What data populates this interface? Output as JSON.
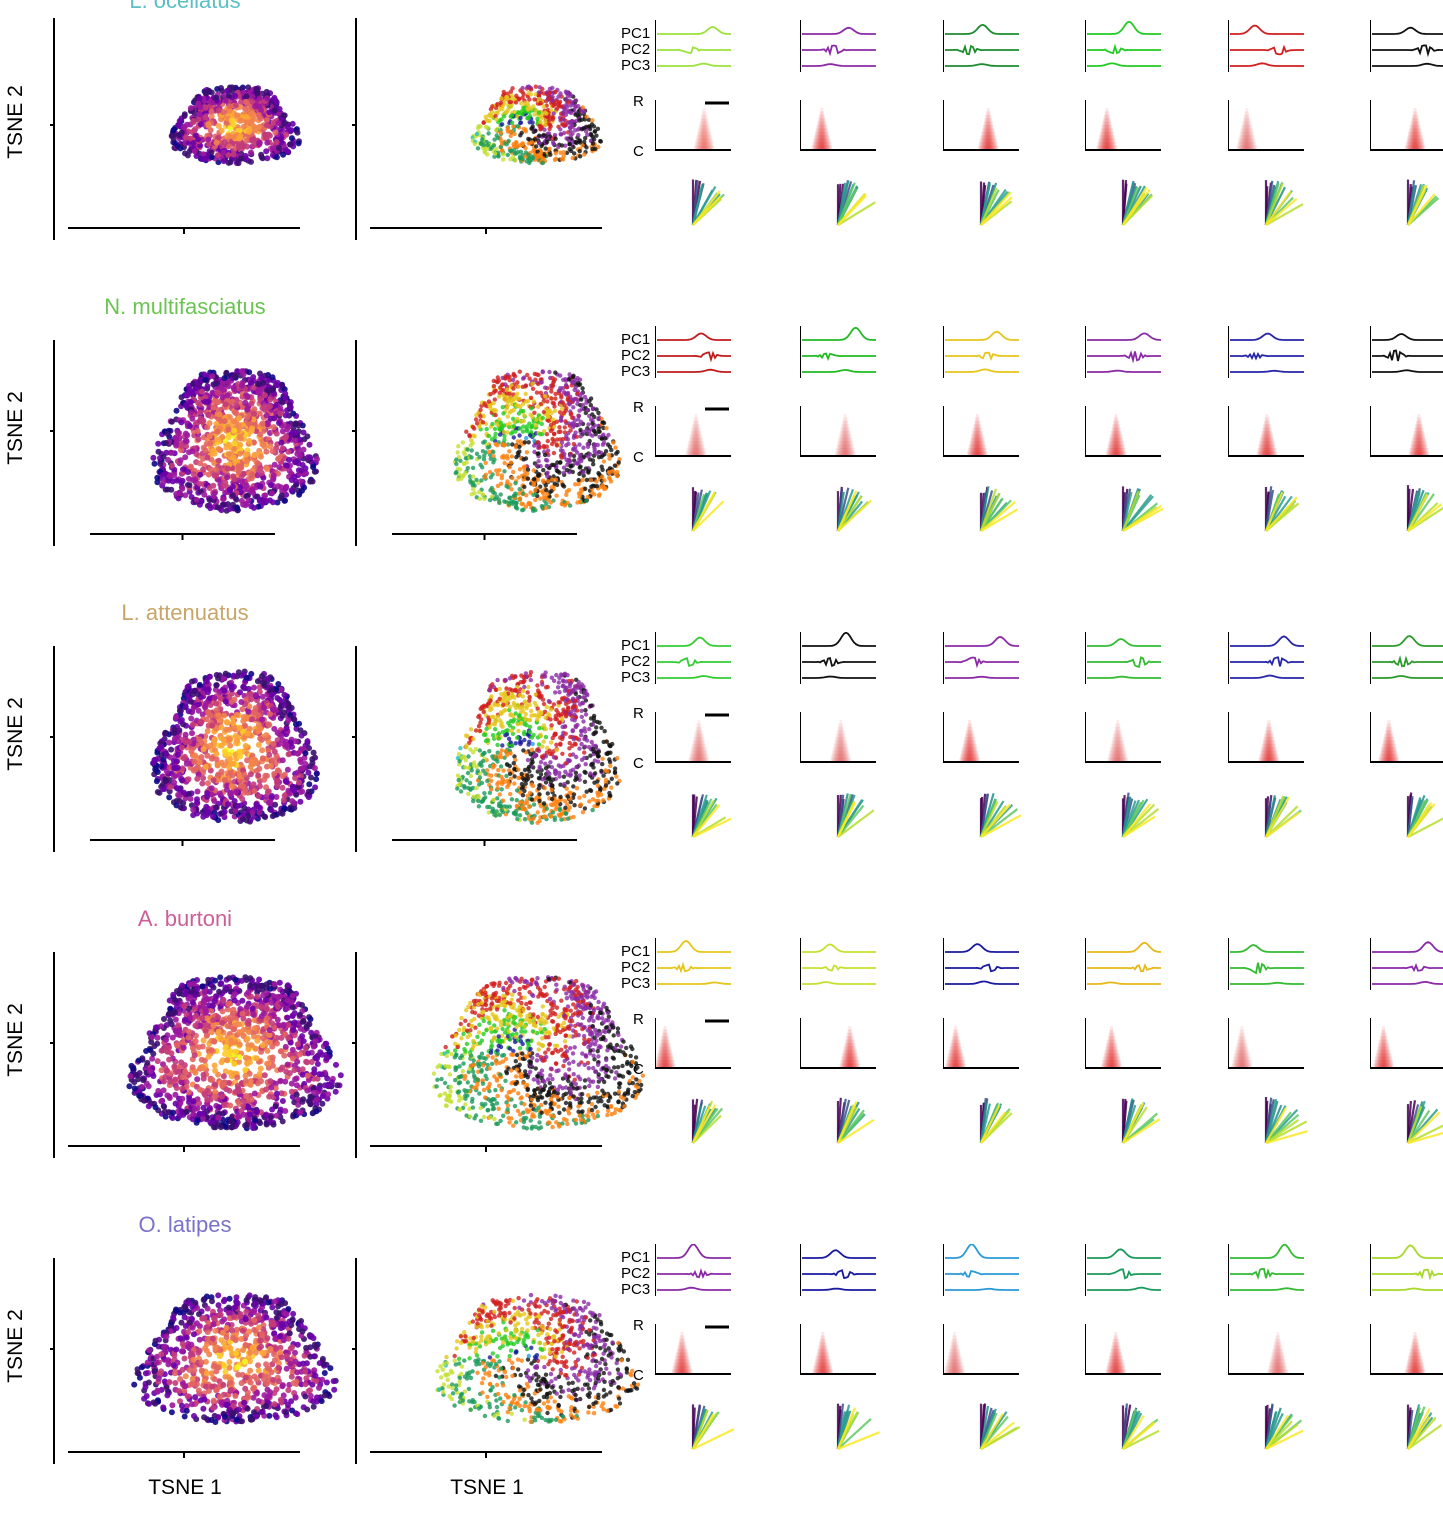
{
  "axis_labels": {
    "tsne_y": "TSNE 2",
    "tsne_x": "TSNE 1",
    "pc": [
      "PC1",
      "PC2",
      "PC3"
    ],
    "heat_top": "R",
    "heat_bottom": "C"
  },
  "rows": [
    {
      "species": "L. ocellatus",
      "title_color": "#5bbfc4",
      "clusters": [
        {
          "color": "#9be23a",
          "heat": "#e8433a"
        },
        {
          "color": "#8a2aa6",
          "heat": "#e00000"
        },
        {
          "color": "#1c8c2c",
          "heat": "#e00000"
        },
        {
          "color": "#22cc22",
          "heat": "#e00000"
        },
        {
          "color": "#d21f1f",
          "heat": "#e04040"
        },
        {
          "color": "#111111",
          "heat": "#e00000"
        }
      ]
    },
    {
      "species": "N. multifasciatus",
      "title_color": "#6bc451",
      "clusters": [
        {
          "color": "#c01c1c",
          "heat": "#e04040"
        },
        {
          "color": "#22bb22",
          "heat": "#e04040"
        },
        {
          "color": "#e6c51a",
          "heat": "#e00000"
        },
        {
          "color": "#8a2aa6",
          "heat": "#e00000"
        },
        {
          "color": "#2626a8",
          "heat": "#e00000"
        },
        {
          "color": "#111111",
          "heat": "#e00000"
        }
      ]
    },
    {
      "species": "L. attenuatus",
      "title_color": "#c9a56a",
      "clusters": [
        {
          "color": "#33cc33",
          "heat": "#e04040"
        },
        {
          "color": "#111111",
          "heat": "#e04040"
        },
        {
          "color": "#8a2aa6",
          "heat": "#e00000"
        },
        {
          "color": "#33bb33",
          "heat": "#e04040"
        },
        {
          "color": "#2626a8",
          "heat": "#e00000"
        },
        {
          "color": "#2c9a2c",
          "heat": "#e00000"
        }
      ]
    },
    {
      "species": "A. burtoni",
      "title_color": "#cc5f98",
      "clusters": [
        {
          "color": "#e6c51a",
          "heat": "#e00000"
        },
        {
          "color": "#c6e030",
          "heat": "#e00000"
        },
        {
          "color": "#1a1aa0",
          "heat": "#e00000"
        },
        {
          "color": "#e6b81a",
          "heat": "#e00000"
        },
        {
          "color": "#33bb33",
          "heat": "#e04040"
        },
        {
          "color": "#8a2aa6",
          "heat": "#e00000"
        }
      ]
    },
    {
      "species": "O. latipes",
      "title_color": "#7b72c9",
      "clusters": [
        {
          "color": "#8a2aa6",
          "heat": "#e00000"
        },
        {
          "color": "#1a1aa0",
          "heat": "#e00000"
        },
        {
          "color": "#2a9ad8",
          "heat": "#e04040"
        },
        {
          "color": "#1a9a5a",
          "heat": "#e00000"
        },
        {
          "color": "#33bb33",
          "heat": "#e04040"
        },
        {
          "color": "#a6d82a",
          "heat": "#e00000"
        }
      ]
    }
  ]
}
